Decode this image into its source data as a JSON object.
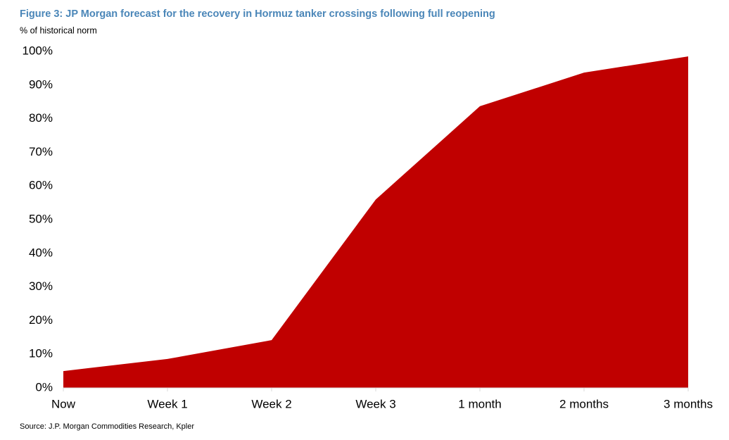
{
  "chart_data": {
    "type": "area",
    "title": "Figure 3: JP Morgan forecast for the recovery in Hormuz tanker crossings following full reopening",
    "subtitle": "% of historical norm",
    "source": "Source: J.P. Morgan Commodities Research, Kpler",
    "categories": [
      "Now",
      "Week 1",
      "Week 2",
      "Week 3",
      "1 month",
      "2 months",
      "3 months"
    ],
    "values": [
      5,
      8.6,
      14.2,
      56,
      83.7,
      93.7,
      98.5
    ],
    "color": "#c00000",
    "ylim": [
      0,
      100
    ],
    "yticks": [
      {
        "value": 0,
        "label": "0%"
      },
      {
        "value": 10,
        "label": "10%"
      },
      {
        "value": 20,
        "label": "20%"
      },
      {
        "value": 30,
        "label": "30%"
      },
      {
        "value": 40,
        "label": "40%"
      },
      {
        "value": 50,
        "label": "50%"
      },
      {
        "value": 60,
        "label": "60%"
      },
      {
        "value": 70,
        "label": "70%"
      },
      {
        "value": 80,
        "label": "80%"
      },
      {
        "value": 90,
        "label": "90%"
      },
      {
        "value": 100,
        "label": "100%"
      }
    ]
  }
}
